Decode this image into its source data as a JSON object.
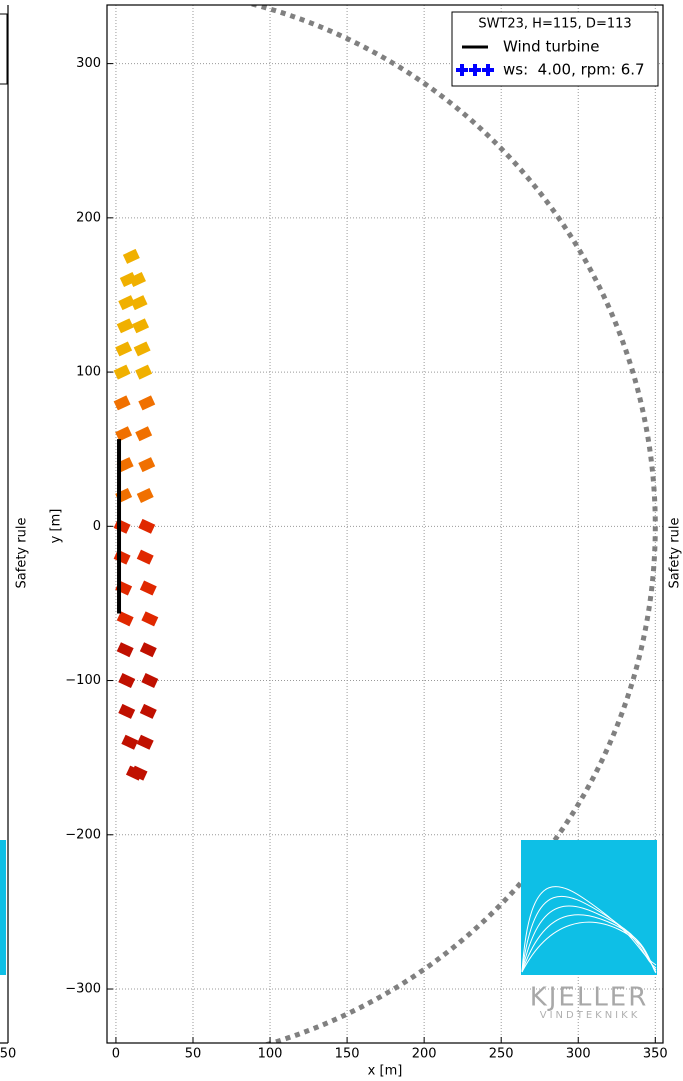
{
  "chart_data": {
    "type": "scatter",
    "xlabel": "x [m]",
    "ylabel": "y [m]",
    "side_label": "Safety rule",
    "xlim": [
      -5.8,
      355
    ],
    "ylim": [
      -335,
      338
    ],
    "xticks": [
      0,
      50,
      100,
      150,
      200,
      250,
      300,
      350
    ],
    "yticks": [
      {
        "value": -300,
        "label": "−300"
      },
      {
        "value": -200,
        "label": "−200"
      },
      {
        "value": -100,
        "label": "−100"
      },
      0,
      100,
      200,
      300
    ],
    "grid": true,
    "legend_title": "SWT23, H=115, D=113",
    "legend_position": "upper right",
    "safety_radius": 350,
    "safety_color": "#808080",
    "turbine": {
      "name": "Wind turbine",
      "color": "#000000",
      "x": [
        2,
        2
      ],
      "y": [
        -56.5,
        56.5
      ]
    },
    "throws": {
      "name": "ws:  4.00, rpm: 6.7",
      "color": "#0000ff",
      "x": [
        10,
        8,
        14,
        7,
        15,
        6,
        16,
        5,
        17,
        4,
        18,
        4,
        20,
        5,
        18,
        6,
        20,
        5,
        19,
        4,
        20,
        4,
        19,
        5,
        21,
        6,
        22,
        6,
        21,
        7,
        22,
        7,
        21,
        9,
        19,
        12,
        15
      ],
      "y": [
        175,
        160,
        160,
        145,
        145,
        130,
        130,
        115,
        115,
        100,
        100,
        80,
        80,
        60,
        60,
        40,
        40,
        20,
        20,
        0,
        0,
        -20,
        -20,
        -40,
        -40,
        -60,
        -60,
        -80,
        -80,
        -100,
        -100,
        -120,
        -120,
        -140,
        -140,
        -160,
        -160
      ]
    },
    "point_colors": [
      "#f0b000",
      "#f07000",
      "#e02800",
      "#c01000"
    ],
    "logo": {
      "name": "KJELLER",
      "subtitle": "VINDTEKNIKK",
      "color": "#0ebfe6"
    },
    "left_panel": {
      "xtick": 50,
      "side_label": "Safety rule"
    }
  }
}
